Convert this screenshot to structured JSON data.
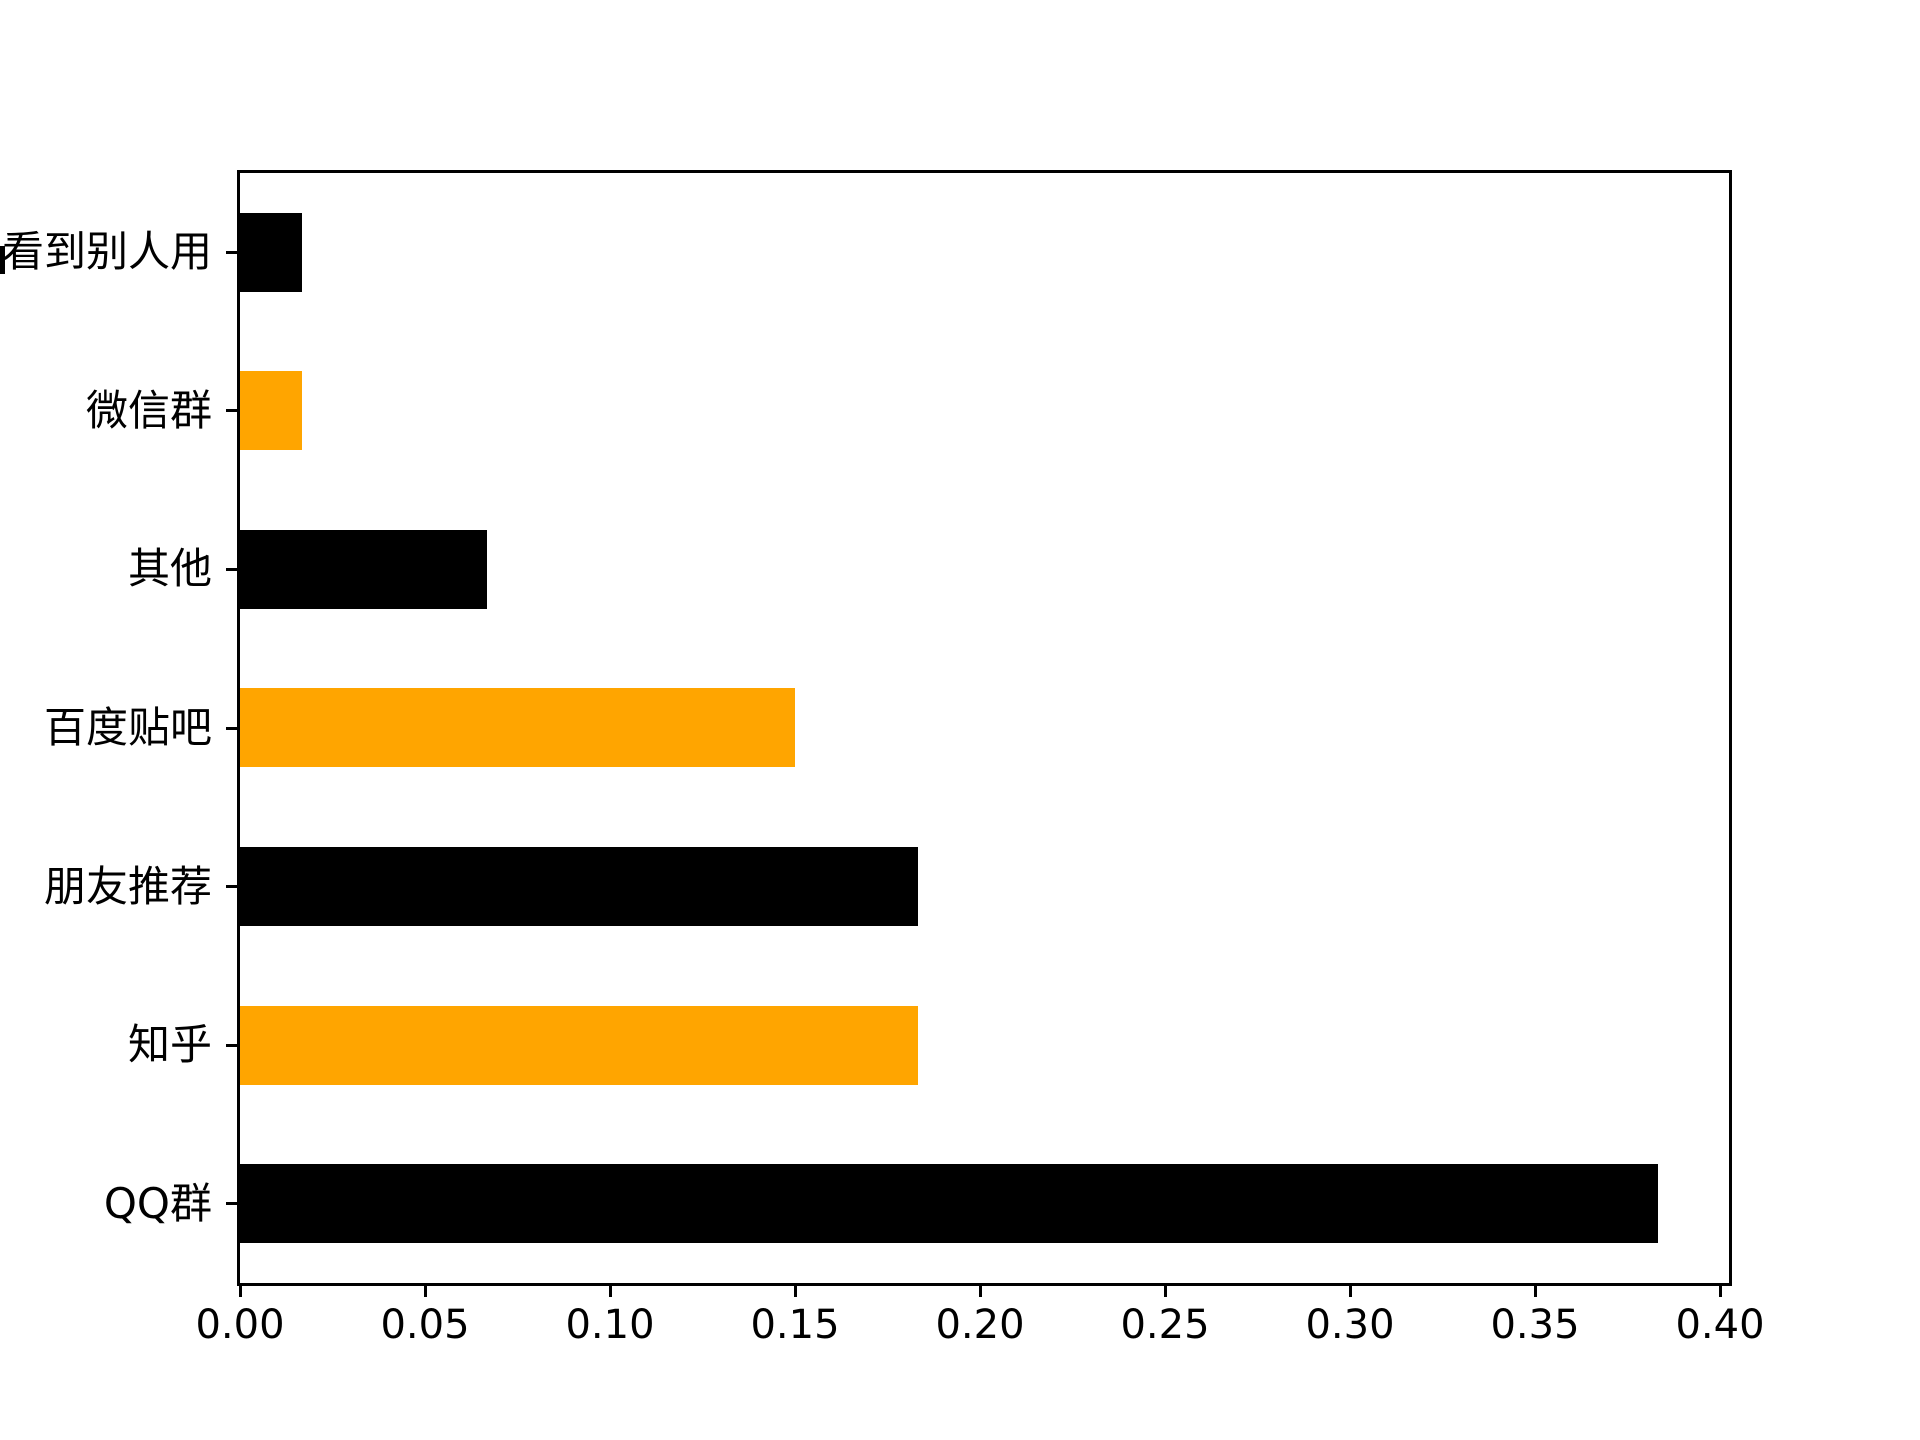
{
  "chart_data": {
    "type": "bar",
    "orientation": "horizontal",
    "title": "",
    "xlabel": "",
    "ylabel": "",
    "categories": [
      "看到别人用",
      "微信群",
      "其他",
      "百度贴吧",
      "朋友推荐",
      "知乎",
      "QQ群"
    ],
    "values": [
      0.0167,
      0.0167,
      0.0667,
      0.15,
      0.1833,
      0.1833,
      0.3833
    ],
    "bar_colors": [
      "#000000",
      "#ffa500",
      "#000000",
      "#ffa500",
      "#000000",
      "#ffa500",
      "#000000"
    ],
    "first_label_clipped": true,
    "xticks": {
      "labels": [
        "0.00",
        "0.05",
        "0.10",
        "0.15",
        "0.20",
        "0.25",
        "0.30",
        "0.35",
        "0.40"
      ],
      "values": [
        0.0,
        0.05,
        0.1,
        0.15,
        0.2,
        0.25,
        0.3,
        0.35,
        0.4
      ]
    },
    "xlim": [
      0,
      0.4024
    ],
    "grid": false,
    "legend": false
  },
  "colors": {
    "axis": "#000000",
    "background": "#ffffff",
    "bar_black": "#000000",
    "bar_orange": "#ffa500"
  }
}
